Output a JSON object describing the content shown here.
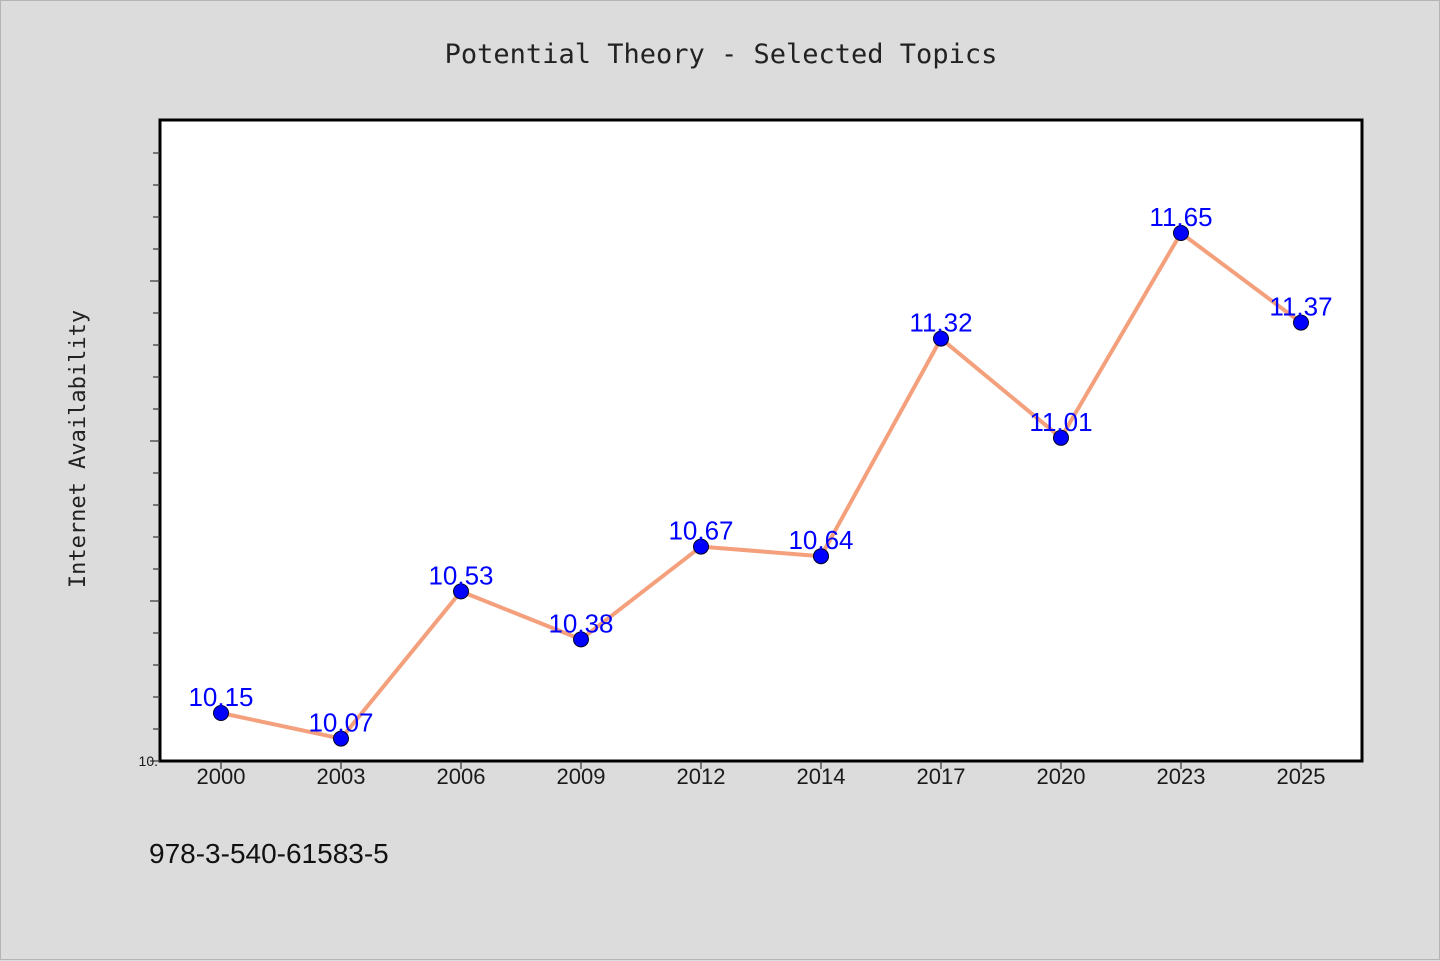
{
  "chart_data": {
    "type": "line",
    "title": "Potential Theory - Selected Topics",
    "xlabel": "",
    "ylabel": "Internet Availability",
    "categories": [
      "2000",
      "2003",
      "2006",
      "2009",
      "2012",
      "2014",
      "2017",
      "2020",
      "2023",
      "2025"
    ],
    "series": [
      {
        "values": [
          10.15,
          10.07,
          10.53,
          10.38,
          10.67,
          10.64,
          11.32,
          11.01,
          11.65,
          11.37
        ],
        "labels": [
          "10.15",
          "10.07",
          "10.53",
          "10.38",
          "10.67",
          "10.64",
          "11.32",
          "11.01",
          "11.65",
          "11.37"
        ]
      }
    ],
    "ylim": [
      10.0,
      12.0
    ],
    "ytick_labels": [
      {
        "value": 10.0,
        "label": "10."
      }
    ],
    "grid": false,
    "legend": "none",
    "colors": {
      "line": "#f4a07c",
      "marker": "#0000ff",
      "label": "#0000ff",
      "background": "#dcdcdc",
      "plot_background": "#ffffff"
    }
  },
  "footnote": "978-3-540-61583-5"
}
